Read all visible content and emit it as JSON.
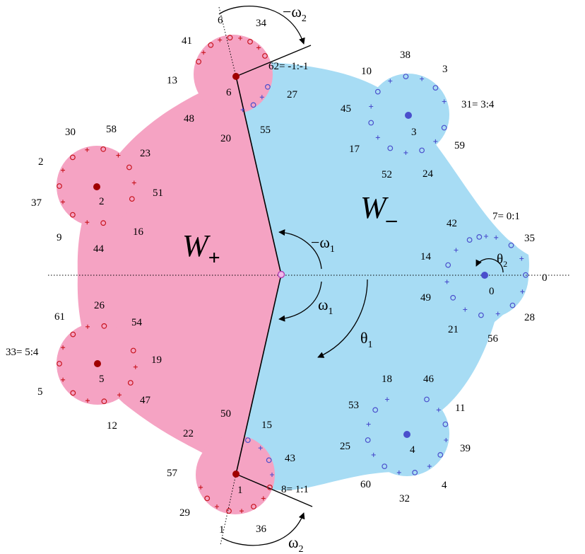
{
  "colors": {
    "w_plus_fill": "#f5a3c3",
    "w_minus_fill": "#a7dcf4",
    "red_marker": "#c8141e",
    "dark_red_dot": "#a00000",
    "blue_marker": "#4a4fcc",
    "blue_dot": "#4a4fcc",
    "center_dot_fill": "#f0b8ea",
    "center_dot_stroke": "#b040b0"
  },
  "region_labels": {
    "w_plus": "W",
    "w_plus_sub": "+",
    "w_minus": "W",
    "w_minus_sub": "–"
  },
  "angle_labels": {
    "neg_omega1": "−ω",
    "neg_omega1_sub": "1",
    "omega1": "ω",
    "omega1_sub": "1",
    "theta1": "θ",
    "theta1_sub": "1",
    "theta2": "θ",
    "theta2_sub": "2",
    "neg_omega2": "−ω",
    "neg_omega2_sub": "2",
    "omega2": "ω",
    "omega2_sub": "2"
  },
  "center_labels": [
    "0",
    "1",
    "2",
    "3",
    "4",
    "5",
    "6"
  ],
  "point_labels": [
    "34",
    "6",
    "41",
    "13",
    "48",
    "20",
    "27",
    "55",
    "62= -1:-1",
    "30",
    "58",
    "23",
    "2",
    "51",
    "37",
    "16",
    "9",
    "44",
    "10",
    "38",
    "3",
    "45",
    "31= 3:4",
    "17",
    "59",
    "52",
    "24",
    "42",
    "7= 0:1",
    "35",
    "14",
    "0",
    "49",
    "28",
    "21",
    "56",
    "61",
    "26",
    "54",
    "33= 5:4",
    "19",
    "5",
    "47",
    "12",
    "18",
    "46",
    "53",
    "11",
    "25",
    "39",
    "60",
    "4",
    "32",
    "50",
    "22",
    "15",
    "43",
    "57",
    "8= 1:1",
    "29",
    "1",
    "36"
  ]
}
